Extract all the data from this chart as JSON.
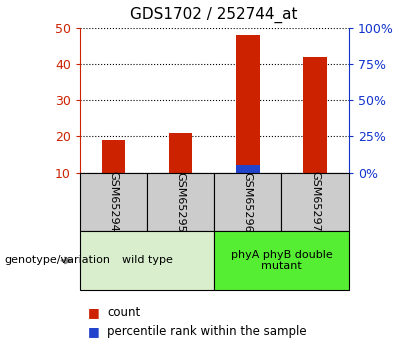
{
  "title": "GDS1702 / 252744_at",
  "samples": [
    "GSM65294",
    "GSM65295",
    "GSM65296",
    "GSM65297"
  ],
  "count_values": [
    19,
    21,
    48,
    42
  ],
  "percentile_values": [
    5,
    5,
    12,
    7
  ],
  "ylim_left": [
    10,
    50
  ],
  "ylim_right": [
    0,
    100
  ],
  "yticks_left": [
    10,
    20,
    30,
    40,
    50
  ],
  "yticks_right": [
    0,
    25,
    50,
    75,
    100
  ],
  "baseline": 10,
  "count_color": "#cc2200",
  "percentile_color": "#2244cc",
  "groups": [
    {
      "label": "wild type",
      "indices": [
        0,
        1
      ],
      "color": "#d8eecc"
    },
    {
      "label": "phyA phyB double\nmutant",
      "indices": [
        2,
        3
      ],
      "color": "#55ee33"
    }
  ],
  "group_label_text": "genotype/variation",
  "legend_count_label": "count",
  "legend_percentile_label": "percentile rank within the sample",
  "left_axis_color": "#cc2200",
  "right_axis_color": "#1133cc",
  "sample_box_color": "#cccccc",
  "title_fontsize": 11,
  "tick_fontsize": 9,
  "legend_fontsize": 8.5,
  "bar_width": 0.35
}
